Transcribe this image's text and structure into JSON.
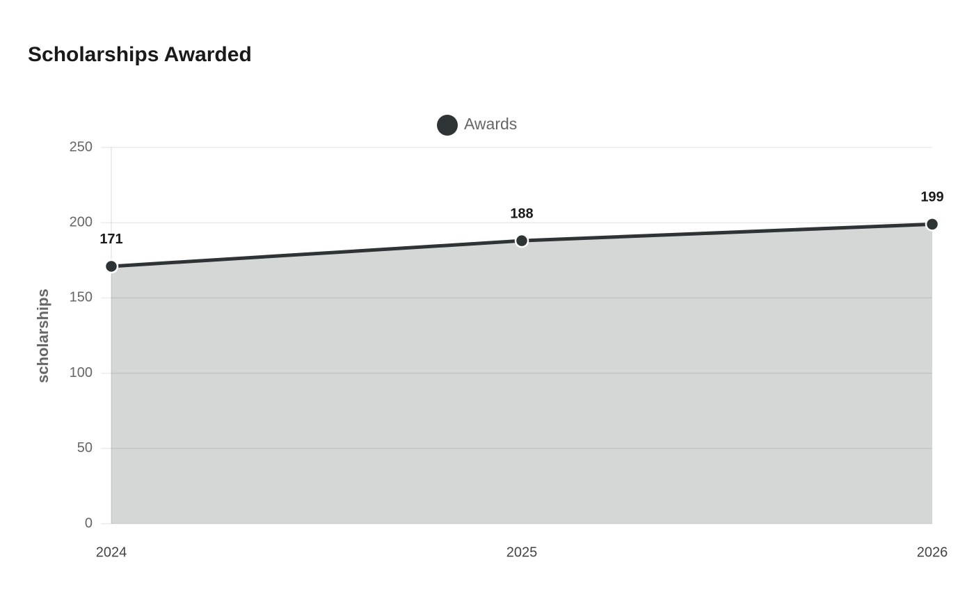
{
  "chart_data": {
    "type": "area",
    "title": "Scholarships Awarded",
    "y_label": "scholarships",
    "categories": [
      "2024",
      "2025",
      "2026"
    ],
    "series": [
      {
        "name": "Awards",
        "color": "#2e3336",
        "fill": "#d5d6d6",
        "values": [
          171,
          188,
          199
        ]
      }
    ],
    "ylim": [
      0,
      250
    ],
    "yticks": [
      0,
      50,
      100,
      150,
      200,
      250
    ],
    "grid": true,
    "legend": "top"
  }
}
